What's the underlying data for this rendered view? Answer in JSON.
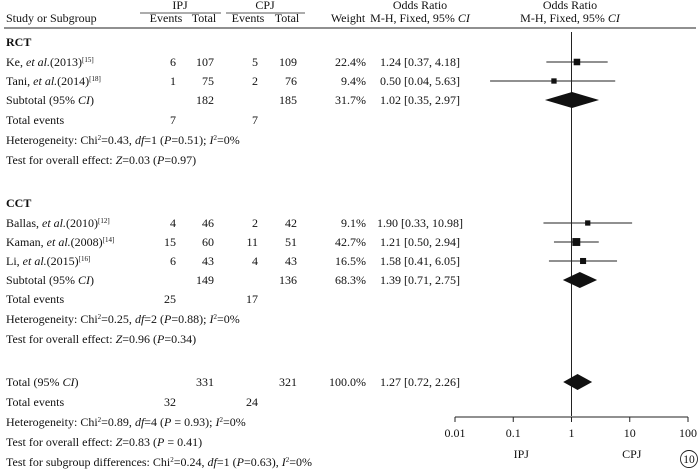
{
  "header": {
    "col_study": "Study or Subgroup",
    "group_exp": "IPJ",
    "group_ctl": "CPJ",
    "events_label": "Events",
    "total_label": "Total",
    "weight_label": "Weight",
    "or_label_line1": "Odds Ratio",
    "or_label_line2": "M-H, Fixed, 95% CI",
    "plot_label_line1": "Odds Ratio",
    "plot_label_line2": "M-H, Fixed, 95% CI"
  },
  "groups": [
    {
      "name": "RCT",
      "studies": [
        {
          "author": "Ke, et al.(2013)",
          "ref": "[15]",
          "exp_events": "6",
          "exp_total": "107",
          "ctl_events": "5",
          "ctl_total": "109",
          "weight": "22.4%",
          "or_text": "1.24 [0.37, 4.18]",
          "or": 1.24,
          "lo": 0.37,
          "hi": 4.18,
          "w": 22.4
        },
        {
          "author": "Tani, et al.(2014)",
          "ref": "[18]",
          "exp_events": "1",
          "exp_total": "75",
          "ctl_events": "2",
          "ctl_total": "76",
          "weight": "9.4%",
          "or_text": "0.50 [0.04, 5.63]",
          "or": 0.5,
          "lo": 0.04,
          "hi": 5.63,
          "w": 9.4
        }
      ],
      "subtotal": {
        "label": "Subtotal (95% CI)",
        "exp_total": "182",
        "ctl_total": "185",
        "weight": "31.7%",
        "or_text": "1.02 [0.35, 2.97]",
        "or": 1.02,
        "lo": 0.35,
        "hi": 2.97
      },
      "total_events": {
        "label": "Total events",
        "exp": "7",
        "ctl": "7"
      },
      "heterogeneity": "Heterogeneity: Chi²=0.43, df=1 (P=0.51); I²=0%",
      "overall": "Test for overall effect: Z=0.03 (P=0.97)"
    },
    {
      "name": "CCT",
      "studies": [
        {
          "author": "Ballas, et al.(2010)",
          "ref": "[12]",
          "exp_events": "4",
          "exp_total": "46",
          "ctl_events": "2",
          "ctl_total": "42",
          "weight": "9.1%",
          "or_text": "1.90 [0.33, 10.98]",
          "or": 1.9,
          "lo": 0.33,
          "hi": 10.98,
          "w": 9.1
        },
        {
          "author": "Kaman, et al.(2008)",
          "ref": "[14]",
          "exp_events": "15",
          "exp_total": "60",
          "ctl_events": "11",
          "ctl_total": "51",
          "weight": "42.7%",
          "or_text": "1.21 [0.50, 2.94]",
          "or": 1.21,
          "lo": 0.5,
          "hi": 2.94,
          "w": 42.7
        },
        {
          "author": "Li, et al.(2015)",
          "ref": "[16]",
          "exp_events": "6",
          "exp_total": "43",
          "ctl_events": "4",
          "ctl_total": "43",
          "weight": "16.5%",
          "or_text": "1.58 [0.41, 6.05]",
          "or": 1.58,
          "lo": 0.41,
          "hi": 6.05,
          "w": 16.5
        }
      ],
      "subtotal": {
        "label": "Subtotal (95% CI)",
        "exp_total": "149",
        "ctl_total": "136",
        "weight": "68.3%",
        "or_text": "1.39 [0.71, 2.75]",
        "or": 1.39,
        "lo": 0.71,
        "hi": 2.75
      },
      "total_events": {
        "label": "Total events",
        "exp": "25",
        "ctl": "17"
      },
      "heterogeneity": "Heterogeneity: Chi²=0.25, df=2 (P=0.88); I²=0%",
      "overall": "Test for overall effect: Z=0.96 (P=0.34)"
    }
  ],
  "total": {
    "label": "Total (95% CI)",
    "exp_total": "331",
    "ctl_total": "321",
    "weight": "100.0%",
    "or_text": "1.27 [0.72, 2.26]",
    "or": 1.27,
    "lo": 0.72,
    "hi": 2.26
  },
  "total_events": {
    "label": "Total events",
    "exp": "32",
    "ctl": "24"
  },
  "heterogeneity": "Heterogeneity: Chi²=0.89, df=4 (P = 0.93); I²=0%",
  "overall": "Test for overall effect: Z=0.83 (P = 0.41)",
  "subgroup_diff": "Test for subgroup differences: Chi²=0.24, df=1 (P=0.63), I²=0%",
  "chart_data": {
    "type": "forest",
    "scale": "log",
    "xlim": [
      0.01,
      100
    ],
    "ticks": [
      0.01,
      0.1,
      1,
      10,
      100
    ],
    "tick_labels": [
      "0.01",
      "0.1",
      "1",
      "10",
      "100"
    ],
    "favours_left": "IPJ",
    "favours_right": "CPJ",
    "badge": "10"
  }
}
